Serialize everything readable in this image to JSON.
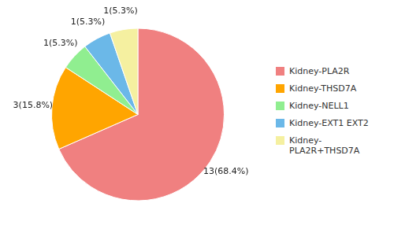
{
  "chart_data": {
    "type": "pie",
    "categories": [
      "Kidney-PLA2R",
      "Kidney-THSD7A",
      "Kidney-NELL1",
      "Kidney-EXT1 EXT2",
      "Kidney-\nPLA2R+THSD7A"
    ],
    "values": [
      13,
      3,
      1,
      1,
      1
    ],
    "value_labels": [
      "13(68.4%)",
      "3(15.8%)",
      "1(5.3%)",
      "1(5.3%)",
      "1(5.3%)"
    ],
    "data_labels": true,
    "colors": [
      "#F08080",
      "#FFA500",
      "#90EE90",
      "#6BB8E8",
      "#F5F0A0"
    ],
    "legend": "right"
  }
}
